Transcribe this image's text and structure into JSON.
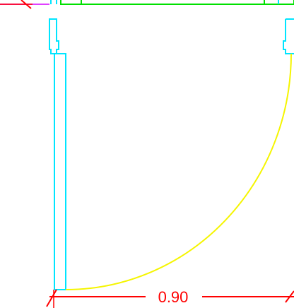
{
  "drawing": {
    "dimension_label": "0.90",
    "colors": {
      "background": "#ffffff",
      "door_leaf": "#00e5ff",
      "frame": "#00e5ff",
      "swing_arc": "#f5f500",
      "dimension": "#ff0000",
      "wall_green": "#00e000",
      "wall_magenta": "#e040ff"
    }
  }
}
